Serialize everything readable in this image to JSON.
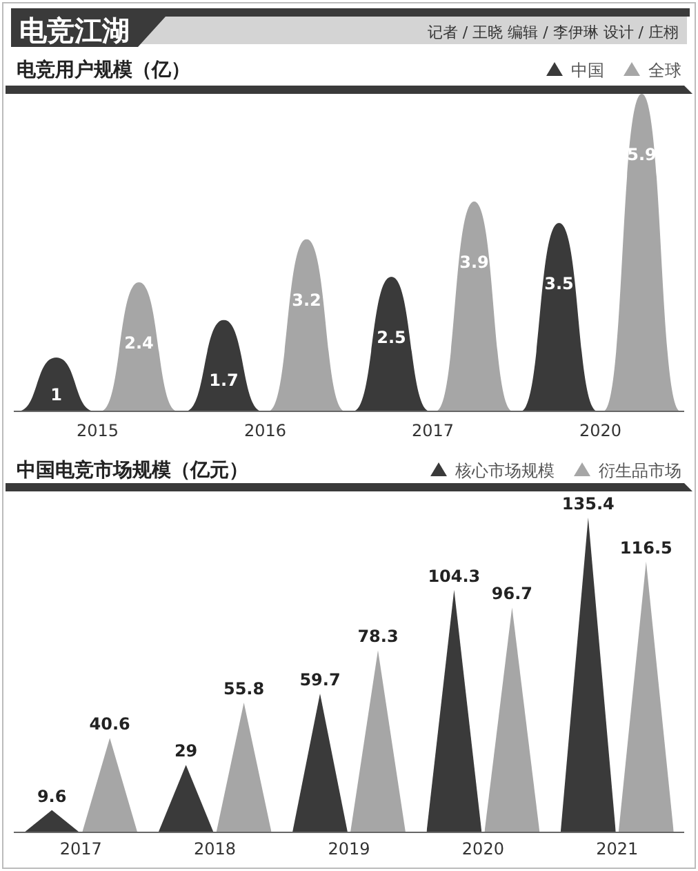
{
  "chart_data": [
    {
      "type": "bar",
      "title": "电竞江湖",
      "subtitle": "电竞用户规模（亿）",
      "annotations": [
        "记者 / 王晓  编辑 / 李伊琳  设计 / 庄栩"
      ],
      "categories": [
        "2015",
        "2016",
        "2017",
        "2020"
      ],
      "series": [
        {
          "name": "中国",
          "color": "#3a3a3a",
          "values": [
            1,
            1.7,
            2.5,
            3.5
          ]
        },
        {
          "name": "全球",
          "color": "#a6a6a6",
          "values": [
            2.4,
            3.2,
            3.9,
            5.9
          ]
        }
      ],
      "data_labels": true,
      "legend": "top right"
    },
    {
      "type": "bar",
      "subtitle": "中国电竞市场规模（亿元）",
      "categories": [
        "2017",
        "2018",
        "2019",
        "2020",
        "2021"
      ],
      "series": [
        {
          "name": "核心市场规模",
          "color": "#3a3a3a",
          "values": [
            9.6,
            29,
            59.7,
            104.3,
            135.4
          ]
        },
        {
          "name": "衍生品市场",
          "color": "#a6a6a6",
          "values": [
            40.6,
            55.8,
            78.3,
            96.7,
            116.5
          ]
        }
      ],
      "data_labels": true,
      "legend": "top right"
    }
  ]
}
